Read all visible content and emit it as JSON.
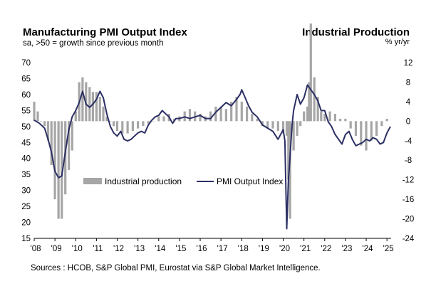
{
  "header": {
    "left_title": "Manufacturing PMI Output Index",
    "left_subtitle": "sa, >50 = growth  since previous month",
    "right_title": "Industrial Production",
    "right_subtitle": "% yr/yr"
  },
  "footer": {
    "source": "Sources : HCOB, S&P Global PMI, Eurostat via S&P Global Market Intelligence."
  },
  "chart_data": {
    "type": "line+bar",
    "title": "Manufacturing PMI Output Index",
    "right_title": "Industrial Production",
    "x_ticks": [
      "'08",
      "'09",
      "'10",
      "'11",
      "'12",
      "'13",
      "'14",
      "'15",
      "'16",
      "'17",
      "'18",
      "'19",
      "'20",
      "'21",
      "'22",
      "'23",
      "'24",
      "'25"
    ],
    "x_start": 2008.0,
    "x_end": 2025.2,
    "left_axis": {
      "ylim": [
        15,
        70
      ],
      "ticks": [
        "15",
        "20",
        "25",
        "30",
        "35",
        "40",
        "45",
        "50",
        "55",
        "60",
        "65",
        "70"
      ]
    },
    "right_axis": {
      "ylim": [
        -24,
        12
      ],
      "ticks": [
        "-24",
        "-20",
        "-16",
        "-12",
        "-8",
        "-4",
        "0",
        "4",
        "8",
        "12"
      ]
    },
    "legend": [
      "Industrial production",
      "PMI Output Index"
    ],
    "series": [
      {
        "name": "PMI Output Index",
        "axis": "left",
        "x": [
          2008.0,
          2008.25,
          2008.5,
          2008.67,
          2008.83,
          2009.0,
          2009.17,
          2009.33,
          2009.5,
          2009.67,
          2009.83,
          2010.0,
          2010.17,
          2010.33,
          2010.5,
          2010.67,
          2010.83,
          2011.0,
          2011.17,
          2011.33,
          2011.5,
          2011.67,
          2011.83,
          2012.0,
          2012.17,
          2012.33,
          2012.5,
          2012.67,
          2012.83,
          2013.0,
          2013.17,
          2013.33,
          2013.5,
          2013.67,
          2013.83,
          2014.0,
          2014.17,
          2014.33,
          2014.5,
          2014.67,
          2014.83,
          2015.0,
          2015.25,
          2015.5,
          2015.75,
          2016.0,
          2016.25,
          2016.5,
          2016.75,
          2017.0,
          2017.25,
          2017.5,
          2017.75,
          2017.92,
          2018.0,
          2018.17,
          2018.33,
          2018.5,
          2018.75,
          2019.0,
          2019.25,
          2019.5,
          2019.75,
          2020.0,
          2020.08,
          2020.17,
          2020.25,
          2020.33,
          2020.42,
          2020.5,
          2020.67,
          2020.83,
          2021.0,
          2021.17,
          2021.33,
          2021.5,
          2021.67,
          2021.83,
          2022.0,
          2022.17,
          2022.33,
          2022.5,
          2022.67,
          2022.83,
          2023.0,
          2023.17,
          2023.33,
          2023.5,
          2023.67,
          2023.83,
          2024.0,
          2024.17,
          2024.33,
          2024.5,
          2024.67,
          2024.83,
          2025.0,
          2025.17
        ],
        "values": [
          52,
          51,
          49.5,
          46,
          42,
          36,
          34,
          34.5,
          42,
          49,
          53,
          55,
          57.5,
          61,
          57,
          56,
          57,
          58.5,
          61,
          59,
          54,
          50,
          48,
          47,
          48.5,
          46,
          45.5,
          46,
          47,
          48,
          48.5,
          48,
          50.5,
          52,
          53,
          53.5,
          55,
          54,
          53,
          51,
          52.5,
          52.5,
          53,
          52.5,
          53,
          53.5,
          52.5,
          52.5,
          54.5,
          56,
          57.5,
          56.5,
          58.5,
          60,
          61.5,
          59,
          56.5,
          54.5,
          53,
          50.5,
          49.5,
          48.5,
          46,
          49,
          45.5,
          18,
          33,
          40.5,
          50,
          55,
          60,
          57,
          59,
          63,
          61.5,
          60,
          58,
          55,
          55,
          51.5,
          50,
          47.5,
          46,
          44.5,
          47.5,
          48.5,
          46,
          44,
          44.5,
          45,
          46,
          45.5,
          46.5,
          46,
          44.5,
          45,
          48,
          50
        ]
      },
      {
        "name": "Industrial production",
        "axis": "right",
        "x": [
          2008.0,
          2008.17,
          2008.33,
          2008.5,
          2008.67,
          2008.83,
          2009.0,
          2009.17,
          2009.33,
          2009.5,
          2009.67,
          2009.83,
          2010.0,
          2010.17,
          2010.33,
          2010.5,
          2010.67,
          2010.83,
          2011.0,
          2011.17,
          2011.33,
          2011.5,
          2011.67,
          2011.83,
          2012.0,
          2012.25,
          2012.5,
          2012.75,
          2013.0,
          2013.25,
          2013.5,
          2013.75,
          2014.0,
          2014.25,
          2014.5,
          2014.75,
          2015.0,
          2015.25,
          2015.5,
          2015.75,
          2016.0,
          2016.25,
          2016.5,
          2016.75,
          2017.0,
          2017.25,
          2017.5,
          2017.75,
          2018.0,
          2018.25,
          2018.5,
          2018.75,
          2019.0,
          2019.25,
          2019.5,
          2019.75,
          2020.0,
          2020.17,
          2020.25,
          2020.33,
          2020.5,
          2020.67,
          2020.83,
          2021.0,
          2021.17,
          2021.25,
          2021.33,
          2021.5,
          2021.67,
          2021.83,
          2022.0,
          2022.25,
          2022.5,
          2022.75,
          2023.0,
          2023.25,
          2023.5,
          2023.75,
          2024.0,
          2024.25,
          2024.5,
          2024.75,
          2025.0
        ],
        "values": [
          4,
          2,
          0,
          -1,
          -4,
          -9,
          -16,
          -20,
          -20,
          -15,
          -10,
          -6,
          2,
          8,
          9,
          8,
          7,
          6,
          6,
          5,
          3,
          1,
          0,
          -1,
          -2,
          -2.5,
          -2.5,
          -2,
          -1.5,
          -1,
          -0.5,
          0,
          1,
          1,
          1.5,
          0.5,
          1,
          2,
          2.5,
          2,
          1.5,
          1,
          2,
          3,
          3,
          2.5,
          4,
          5,
          4,
          3,
          1.5,
          0.5,
          -1,
          -1.5,
          -1.5,
          -2,
          -2.5,
          -3,
          -12,
          -20,
          -6,
          -3,
          -1,
          2,
          3,
          8,
          20,
          9,
          5,
          2,
          1.5,
          2,
          1.5,
          0.5,
          0.5,
          -1.5,
          -3,
          -5,
          -6,
          -4,
          -3,
          -1,
          0.5
        ]
      }
    ]
  }
}
